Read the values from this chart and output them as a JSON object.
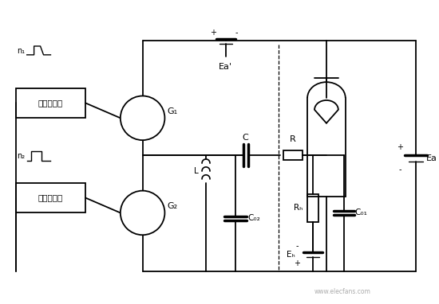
{
  "bg_color": "#ffffff",
  "line_color": "#000000",
  "box1_label": "开启激励器",
  "box2_label": "切尾触发器",
  "g1_label": "G₁",
  "g2_label": "G₂",
  "c_label": "C",
  "r_label": "R",
  "rg_label": "Rₕ",
  "co1_label": "C₀₁",
  "co2_label": "C₀₂",
  "eg_label": "Eₕ",
  "ea_prime_label": "Ea'",
  "ea_label": "Ea",
  "l_label": "L",
  "n1_label": "n₁",
  "n2_label": "n₂",
  "dpi": 100,
  "figsize": [
    5.5,
    3.82
  ]
}
